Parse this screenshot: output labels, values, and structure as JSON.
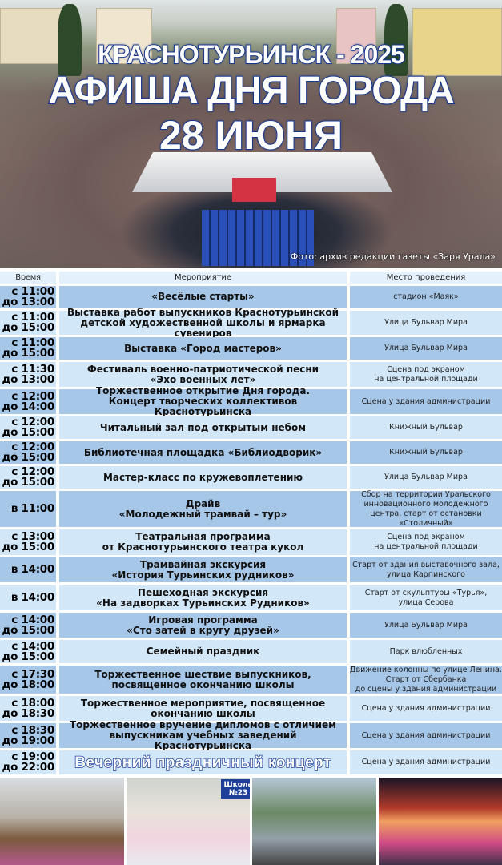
{
  "header": {
    "line1": "КРАСНОТУРЬИНСК - 2025",
    "line2": "АФИША ДНЯ ГОРОДА",
    "line3": "28 ИЮНЯ",
    "photo_credit": "Фото: архив редакции газеты «Заря Урала»"
  },
  "colors": {
    "title_outline": "#1d3f9a",
    "row_dark": "#a7c7e8",
    "row_light": "#d2e8f9"
  },
  "table": {
    "columns": [
      "Время",
      "Мероприятие",
      "Место проведения"
    ],
    "rows": [
      {
        "time": "с 11:00\nдо 13:00",
        "event": "«Весёлые старты»",
        "place": "стадион «Маяк»"
      },
      {
        "time": "с 11:00\nдо 15:00",
        "event": "Выставка работ выпускников Краснотурьинской\nдетской художественной школы и ярмарка сувениров",
        "place": "Улица Бульвар Мира"
      },
      {
        "time": "с 11:00\nдо 15:00",
        "event": "Выставка «Город мастеров»",
        "place": "Улица Бульвар Мира"
      },
      {
        "time": "с 11:30\nдо 13:00",
        "event": "Фестиваль военно-патриотической песни\n«Эхо военных лет»",
        "place": "Сцена под экраном\nна центральной площади"
      },
      {
        "time": "с 12:00\nдо 14:00",
        "event": "Торжественное открытие Дня города.\nКонцерт творческих коллективов Краснотурьинска",
        "place": "Сцена у здания администрации"
      },
      {
        "time": "с 12:00\nдо 15:00",
        "event": "Читальный зал под открытым небом",
        "place": "Книжный Бульвар"
      },
      {
        "time": "с 12:00\nдо 15:00",
        "event": "Библиотечная площадка «Библиодворик»",
        "place": "Книжный Бульвар"
      },
      {
        "time": "с 12:00\nдо 15:00",
        "event": "Мастер-класс по кружевоплетению",
        "place": "Улица Бульвар Мира"
      },
      {
        "time": "в 11:00",
        "event": "Драйв\n«Молодежный трамвай – тур»",
        "place": "Сбор на территории Уральского\nинновационного  молодежного\nцентра, старт от остановки\n«Столичный»"
      },
      {
        "time": "с 13:00\nдо 15:00",
        "event": "Театральная программа\nот Краснотурьинского театра кукол",
        "place": "Сцена под экраном\nна центральной площади"
      },
      {
        "time": "в 14:00",
        "event": "Трамвайная экскурсия\n«История Турьинских рудников»",
        "place": "Старт от здания выставочного зала,\nулица Карпинского"
      },
      {
        "time": "в 14:00",
        "event": "Пешеходная экскурсия\n«На задворках Турьинских Рудников»",
        "place": "Старт от скульптуры «Турья»,\nулица Серова"
      },
      {
        "time": "с 14:00\nдо 15:00",
        "event": "Игровая программа\n«Сто затей в кругу друзей»",
        "place": "Улица Бульвар Мира"
      },
      {
        "time": "с 14:00\nдо 15:00",
        "event": "Семейный праздник",
        "place": "Парк влюбленных"
      },
      {
        "time": "с 17:30\nдо 18:00",
        "event": "Торжественное шествие выпускников,\nпосвященное окончанию школы",
        "place": "Движение колонны по улице Ленина.\nСтарт от Сбербанка\nдо сцены у здания администрации"
      },
      {
        "time": "с 18:00\nдо 18:30",
        "event": "Торжественное мероприятие, посвященное\nокончанию школы",
        "place": "Сцена у здания администрации"
      },
      {
        "time": "с 18:30\nдо 19:00",
        "event": "Торжественное вручение дипломов с отличием\nвыпускникам учебных заведений Краснотурьинска",
        "place": "Сцена у здания администрации"
      },
      {
        "time": "с 19:00\nдо 22:00",
        "event": "Вечерний праздничный концерт",
        "place": "Сцена у здания администрации",
        "highlight": true
      }
    ]
  },
  "photos": {
    "school_sign": "Школа\n№23"
  }
}
